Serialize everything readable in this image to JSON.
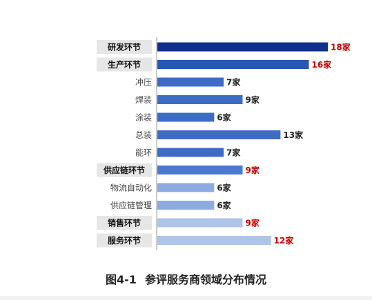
{
  "chart_data": {
    "type": "bar",
    "orientation": "horizontal",
    "categories": [
      "研发环节",
      "生产环节",
      "冲压",
      "焊装",
      "涂装",
      "总装",
      "能环",
      "供应链环节",
      "物流自动化",
      "供应链管理",
      "销售环节",
      "服务环节"
    ],
    "values": [
      18,
      16,
      7,
      9,
      6,
      13,
      7,
      9,
      6,
      6,
      9,
      12
    ],
    "value_labels": [
      "18家",
      "16家",
      "7家",
      "9家",
      "6家",
      "13家",
      "7家",
      "9家",
      "6家",
      "6家",
      "9家",
      "12家"
    ],
    "category_level": [
      "main",
      "main",
      "sub",
      "sub",
      "sub",
      "sub",
      "sub",
      "main",
      "sub",
      "sub",
      "main",
      "main"
    ],
    "bar_colors": [
      "#0f2f8a",
      "#2a56b5",
      "#3e6cc4",
      "#3e6cc4",
      "#3e6cc4",
      "#3e6cc4",
      "#3e6cc4",
      "#4a78cf",
      "#8eabdf",
      "#8eabdf",
      "#aec4e8",
      "#aec4e8"
    ],
    "label_colors": [
      "#c00000",
      "#c00000",
      "#222222",
      "#222222",
      "#222222",
      "#222222",
      "#222222",
      "#c00000",
      "#222222",
      "#222222",
      "#c00000",
      "#c00000"
    ],
    "title": "",
    "xlabel": "",
    "ylabel": "",
    "xlim": [
      0,
      18
    ],
    "grid": false,
    "legend": "none"
  },
  "figure": {
    "number": "图4-1",
    "caption": "参评服务商领域分布情况"
  },
  "colors": {
    "main_label_box": "#e6e6e6",
    "axis_line": "#9a9a9a",
    "highlight_text": "#c00000"
  }
}
